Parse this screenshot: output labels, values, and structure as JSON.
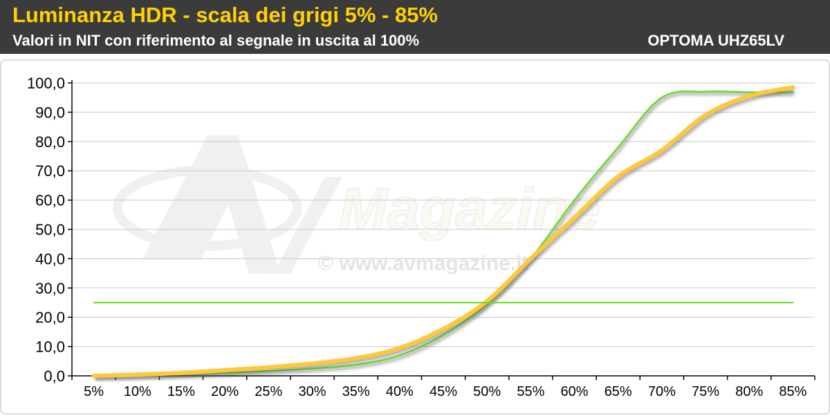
{
  "header": {
    "title": "Luminanza HDR - scala dei grigi 5% - 85%",
    "subtitle": "Valori in NIT con riferimento al segnale in uscita al 100%",
    "model": "OPTOMA UHZ65LV"
  },
  "watermark": {
    "brand": "Magazine",
    "url": "© www.avmagazine.it"
  },
  "colors": {
    "header_bg": "#3b3b3b",
    "title": "#ffd200",
    "reference_line": "#66dd22",
    "measured_line": "#ffc83a"
  },
  "chart_data": {
    "type": "line",
    "categories": [
      "5%",
      "10%",
      "15%",
      "20%",
      "25%",
      "30%",
      "35%",
      "40%",
      "45%",
      "50%",
      "55%",
      "60%",
      "65%",
      "70%",
      "75%",
      "80%",
      "85%"
    ],
    "yticks": [
      "0,0",
      "10,0",
      "20,0",
      "30,0",
      "40,0",
      "50,0",
      "60,0",
      "70,0",
      "80,0",
      "90,0",
      "100,0"
    ],
    "ylim": [
      0,
      100
    ],
    "grid": true,
    "series": [
      {
        "color": "#66dd22",
        "values": [
          0.0,
          0.2,
          0.5,
          1.0,
          1.6,
          2.5,
          3.8,
          7.0,
          14.0,
          24.5,
          40.0,
          60.0,
          78.0,
          95.0,
          97.0,
          96.8,
          96.8
        ]
      },
      {
        "color": "#ffc83a",
        "values": [
          0.0,
          0.4,
          1.0,
          1.9,
          2.9,
          4.2,
          6.0,
          9.5,
          16.0,
          25.5,
          40.0,
          54.0,
          68.0,
          77.0,
          89.0,
          95.5,
          98.5
        ]
      },
      {
        "color": "#66dd22",
        "values": [
          25.0,
          25.0,
          25.0,
          25.0,
          25.0,
          25.0,
          25.0,
          25.0,
          25.0,
          25.0,
          25.0,
          25.0,
          25.0,
          25.0,
          25.0,
          25.0,
          25.0
        ]
      }
    ]
  }
}
